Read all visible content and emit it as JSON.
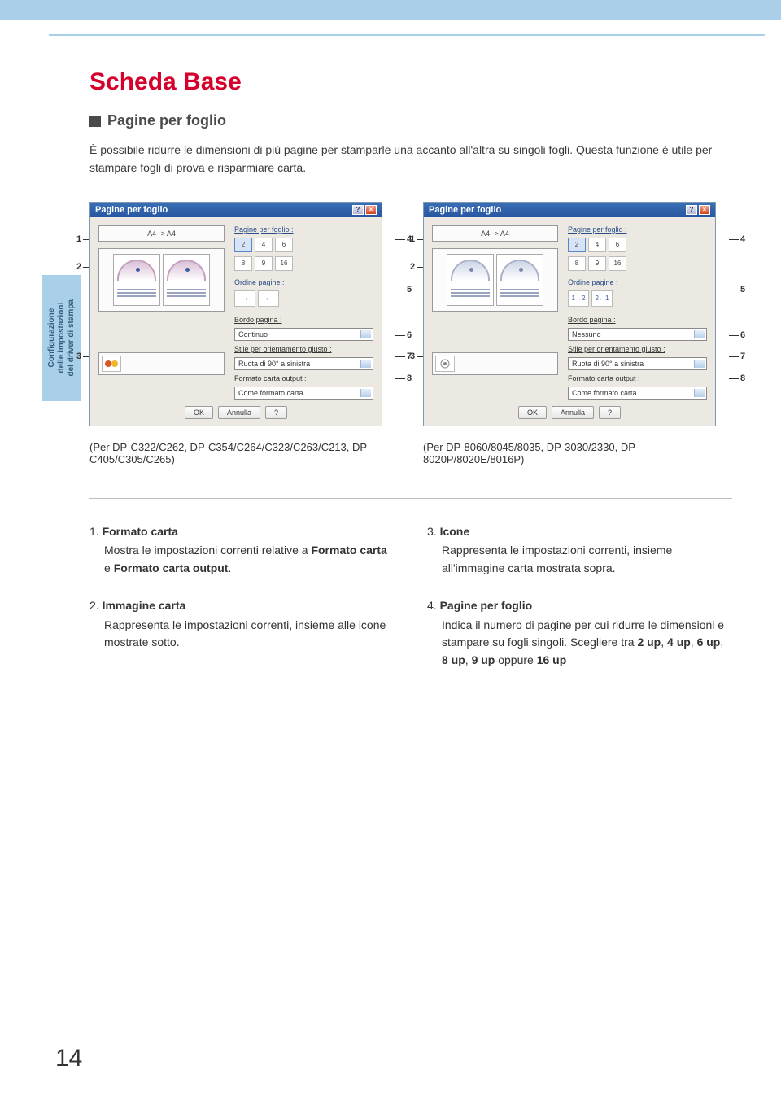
{
  "sidebar_label": "Configurazione\ndelle impostazioni\ndel driver di stampa",
  "title": "Scheda Base",
  "subtitle": "Pagine per foglio",
  "intro": "È possibile ridurre le dimensioni di più pagine per stamparle una accanto all'altra su singoli fogli. Questa funzione è utile per stampare fogli di prova e risparmiare carta.",
  "dialogs": {
    "left": {
      "title": "Pagine per foglio",
      "format": "A4 -> A4",
      "group_pagine": "Pagine per foglio :",
      "options": [
        "2",
        "4",
        "6",
        "8",
        "9",
        "16"
      ],
      "sel_index": 0,
      "group_ordine": "Ordine pagine :",
      "group_bordo": "Bordo pagina :",
      "dd_bordo": "Continuo",
      "group_stile": "Stile per orientamento giusto :",
      "dd_stile": "Ruota di 90° a sinistra",
      "group_formato": "Formato carta output :",
      "dd_formato": "Come formato carta",
      "btn_ok": "OK",
      "btn_cancel": "Annulla",
      "btn_help": "?"
    },
    "right": {
      "title": "Pagine per foglio",
      "format": "A4 -> A4",
      "group_pagine": "Pagine per foglio :",
      "options": [
        "2",
        "4",
        "6",
        "8",
        "9",
        "16"
      ],
      "sel_index": 0,
      "group_ordine": "Ordine pagine :",
      "group_bordo": "Bordo pagina :",
      "dd_bordo": "Nessuno",
      "group_stile": "Stile per orientamento giusto :",
      "dd_stile": "Ruota di 90° a sinistra",
      "group_formato": "Formato carta output :",
      "dd_formato": "Come formato carta",
      "btn_ok": "OK",
      "btn_cancel": "Annulla",
      "btn_help": "?"
    }
  },
  "captions": {
    "left": "(Per DP-C322/C262, DP-C354/C264/C323/C263/C213, DP-C405/C305/C265)",
    "right": "(Per DP-8060/8045/8035, DP-3030/2330, DP-8020P/8020E/8016P)"
  },
  "callouts": [
    "1",
    "2",
    "3",
    "4",
    "5",
    "6",
    "7",
    "8"
  ],
  "defs": [
    {
      "num": "1.",
      "term": "Formato carta",
      "body": "Mostra le impostazioni correnti relative a <b>Formato carta</b> e <b>Formato carta output</b>."
    },
    {
      "num": "2.",
      "term": "Immagine carta",
      "body": "Rappresenta le impostazioni correnti, insieme alle icone mostrate sotto."
    },
    {
      "num": "3.",
      "term": "Icone",
      "body": "Rappresenta le impostazioni correnti, insieme all'immagine carta mostrata sopra."
    },
    {
      "num": "4.",
      "term": "Pagine per foglio",
      "body": "Indica il numero di pagine per cui ridurre le dimensioni e stampare su fogli singoli. Scegliere tra <b>2 up</b>, <b>4 up</b>, <b>6 up</b>, <b>8 up</b>, <b>9 up</b> oppure <b>16 up</b>"
    }
  ],
  "page_number": "14",
  "colors": {
    "accent_blue": "#a9d0e8",
    "title_red": "#d5002b",
    "text": "#333333",
    "link_blue": "#2a4e8a"
  }
}
